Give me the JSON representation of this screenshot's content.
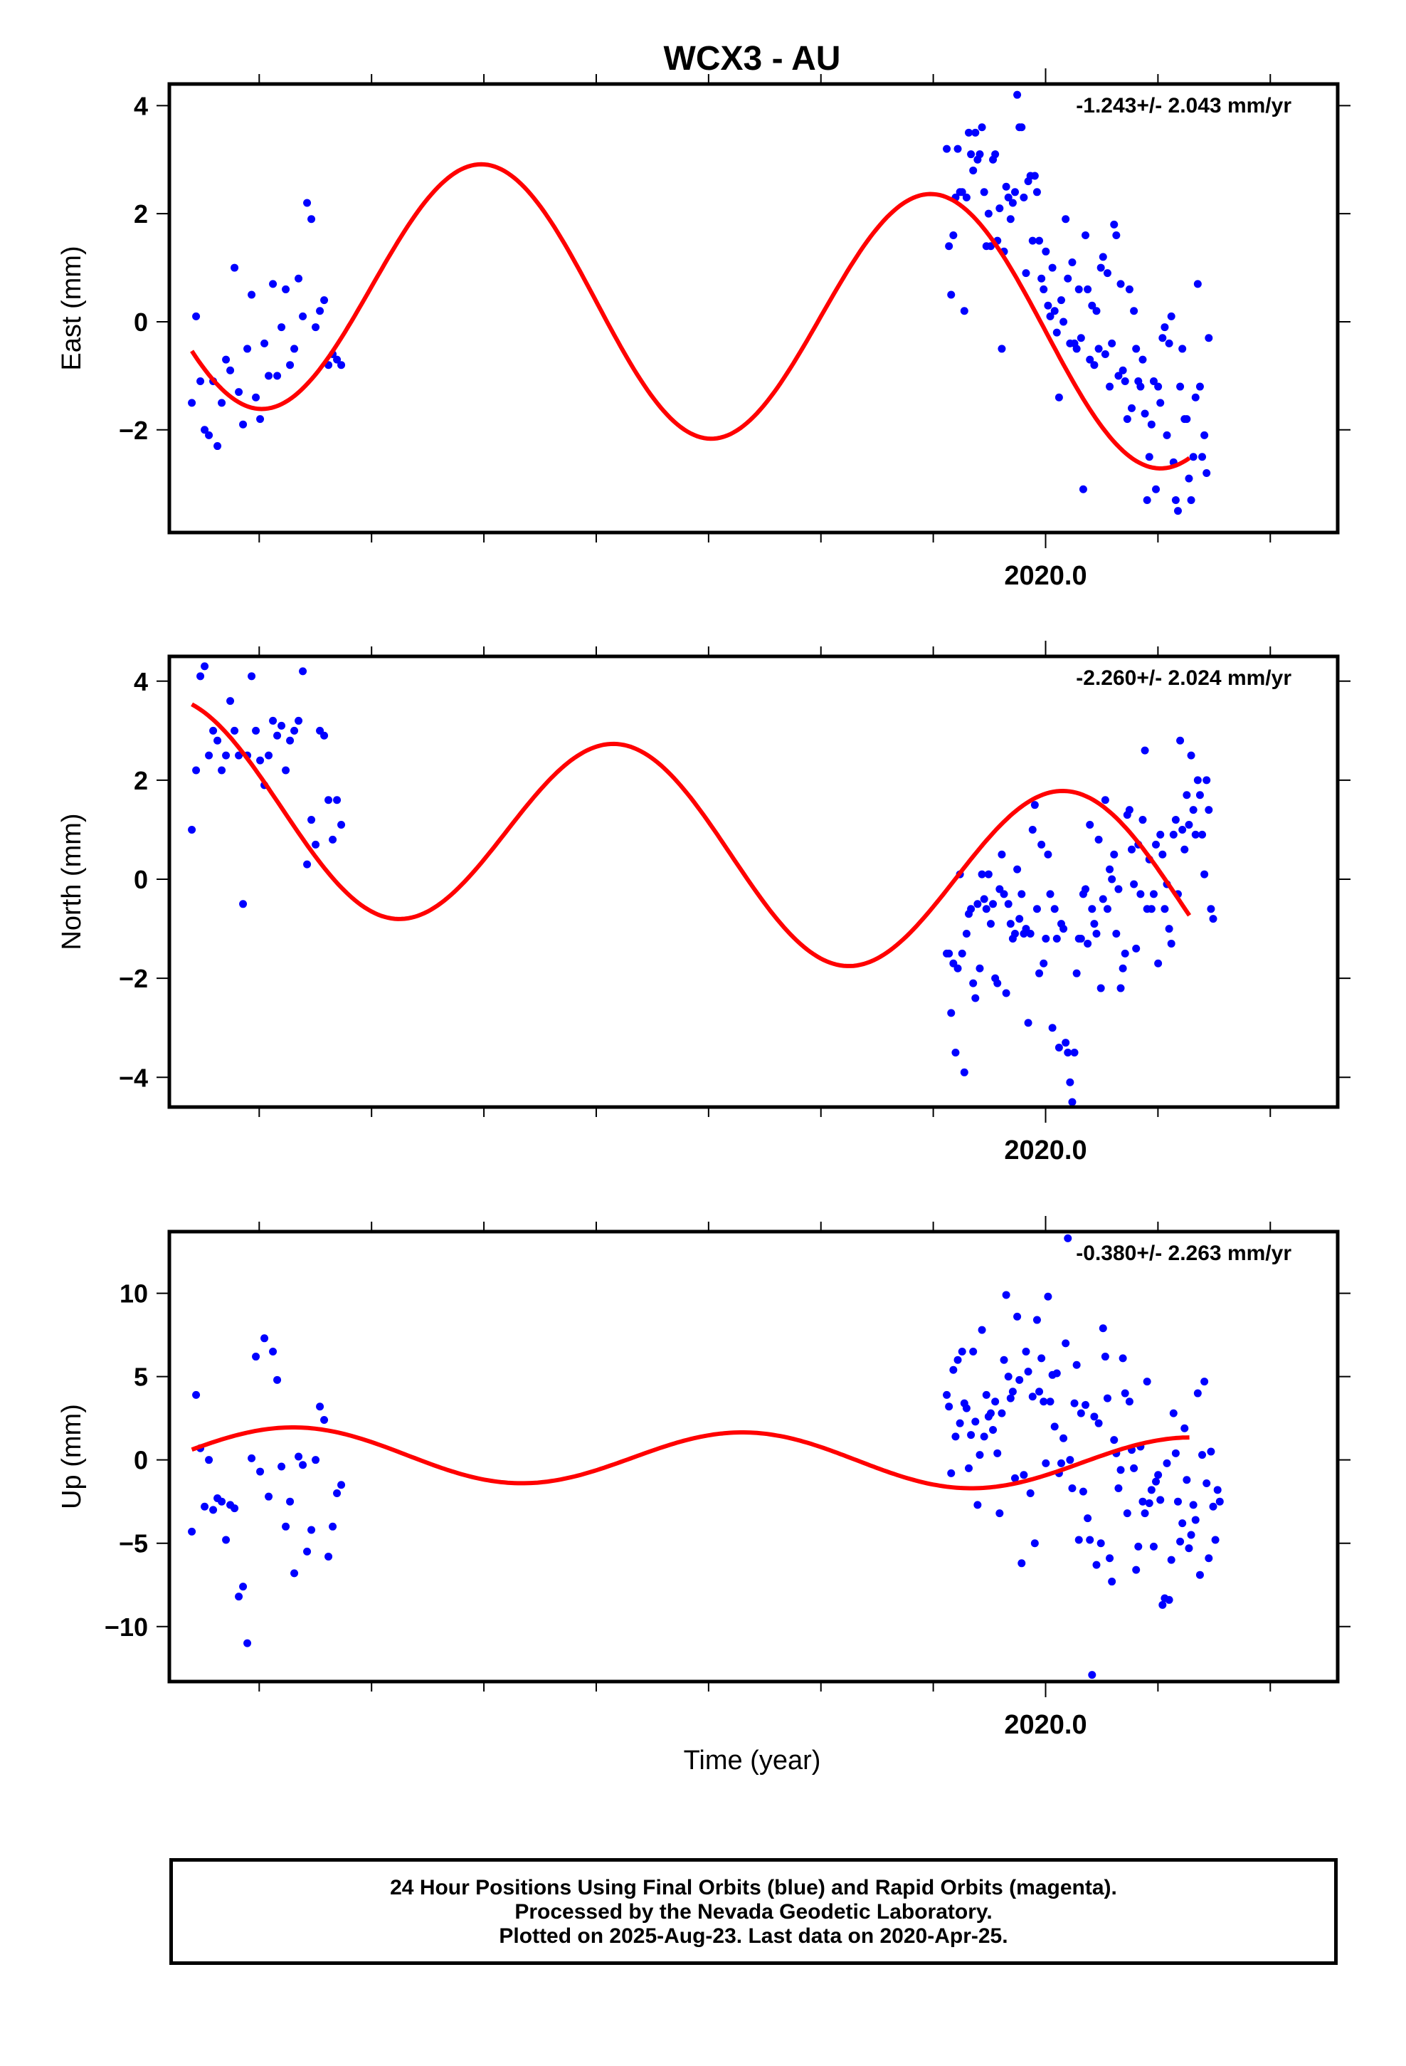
{
  "title": "WCX3 - AU",
  "x_axis_label": "Time (year)",
  "caption": [
    "24 Hour Positions Using Final Orbits (blue) and Rapid Orbits (magenta).",
    "Processed by the Nevada Geodetic Laboratory.",
    "Plotted on 2025-Aug-23. Last data on 2020-Apr-25."
  ],
  "colors": {
    "final_orbits": "#0000ff",
    "fit": "#ff0000"
  },
  "chart_data": [
    {
      "type": "scatter",
      "ylabel": "East (mm)",
      "rate_text": "-1.243+/- 2.043 mm/yr",
      "xlim": [
        2018.05,
        2020.65
      ],
      "ylim": [
        -3.9,
        4.4
      ],
      "x_tick_label": "2020.0",
      "yticks": [
        -2,
        0,
        2,
        4
      ],
      "grid": false,
      "fit": {
        "phase": 2019.75,
        "amp": 2.4,
        "offset": 0.1,
        "trend": -0.55
      },
      "points": {
        "segment1": {
          "start": 2018.1,
          "step": 0.0095,
          "y": [
            -1.5,
            0.1,
            -1.1,
            -2.0,
            -2.1,
            -1.1,
            -2.3,
            -1.5,
            -0.7,
            -0.9,
            1.0,
            -1.3,
            -1.9,
            -0.5,
            0.5,
            -1.4,
            -1.8,
            -0.4,
            -1.0,
            0.7,
            -1.0,
            -0.1,
            0.6,
            -0.8,
            -0.5,
            0.8,
            0.1,
            2.2,
            1.9,
            -0.1,
            0.2,
            0.4,
            -0.8,
            -0.6,
            -0.7,
            -0.8
          ]
        },
        "segment2": {
          "start": 2019.78,
          "step": 0.0049,
          "y": [
            3.2,
            1.4,
            0.5,
            1.6,
            2.3,
            3.2,
            2.4,
            2.4,
            0.2,
            2.3,
            3.5,
            3.1,
            2.8,
            3.5,
            3.0,
            3.1,
            3.6,
            2.4,
            1.4,
            2.0,
            1.4,
            3.0,
            3.1,
            1.5,
            2.1,
            -0.5,
            1.3,
            2.5,
            2.3,
            1.9,
            2.2,
            2.4,
            4.2,
            3.6,
            3.6,
            2.3,
            0.9,
            2.6,
            2.7,
            1.5,
            2.7,
            2.4,
            1.5,
            0.8,
            0.6,
            1.3,
            0.3,
            0.1,
            1.0,
            0.2,
            -0.2,
            -1.4,
            0.4,
            0.0,
            1.9,
            0.8,
            -0.4,
            1.1,
            -0.4,
            -0.5,
            0.6,
            -0.3,
            -3.1,
            1.6,
            0.6,
            -0.7,
            0.3,
            -0.8,
            0.2,
            -0.5,
            1.0,
            1.2,
            -0.6,
            0.9,
            -1.2,
            -0.4,
            1.8,
            1.6,
            -1.0,
            0.7,
            -0.9,
            -1.1,
            -1.8,
            0.6,
            -1.6,
            0.2,
            -0.5,
            -1.1,
            -1.2,
            -0.7,
            -1.7,
            -3.3,
            -2.5,
            -1.9,
            -1.1,
            -3.1,
            -1.2,
            -1.5,
            -0.3,
            -0.1,
            -2.1,
            -0.4,
            0.1,
            -2.6,
            -3.3,
            -3.5,
            -1.2,
            -0.5,
            -1.8,
            -1.8,
            -2.9,
            -3.3,
            -2.5,
            -1.4,
            0.7,
            -1.2,
            -2.5,
            -2.1,
            -2.8,
            -0.3
          ]
        }
      }
    },
    {
      "type": "scatter",
      "ylabel": "North (mm)",
      "rate_text": "-2.260+/- 2.024 mm/yr",
      "xlim": [
        2018.05,
        2020.65
      ],
      "ylim": [
        -4.6,
        4.5
      ],
      "x_tick_label": "2020.0",
      "yticks": [
        -4,
        -2,
        0,
        2,
        4
      ],
      "grid": false,
      "fit": {
        "phase": 2018.05,
        "amp": 2.0,
        "offset": 0.3,
        "trend": -0.95
      },
      "points": {
        "segment1": {
          "start": 2018.1,
          "step": 0.0095,
          "y": [
            1.0,
            2.2,
            4.1,
            4.3,
            2.5,
            3.0,
            2.8,
            2.2,
            2.5,
            3.6,
            3.0,
            2.5,
            -0.5,
            2.5,
            4.1,
            3.0,
            2.4,
            1.9,
            2.5,
            3.2,
            2.9,
            3.1,
            2.2,
            2.8,
            3.0,
            3.2,
            4.2,
            0.3,
            1.2,
            0.7,
            3.0,
            2.9,
            1.6,
            0.8,
            1.6,
            1.1
          ]
        },
        "segment2": {
          "start": 2019.78,
          "step": 0.0049,
          "y": [
            -1.5,
            -1.5,
            -2.7,
            -1.7,
            -3.5,
            -1.8,
            0.1,
            -1.5,
            -3.9,
            -1.1,
            -0.7,
            -0.6,
            -2.1,
            -2.4,
            -0.5,
            -1.8,
            0.1,
            -0.4,
            -0.6,
            0.1,
            -0.9,
            -0.5,
            -2.0,
            -2.1,
            -0.2,
            0.5,
            -0.3,
            -2.3,
            -0.5,
            -0.9,
            -1.2,
            -1.1,
            0.2,
            -0.8,
            -0.3,
            -1.1,
            -1.0,
            -2.9,
            -1.1,
            1.0,
            1.5,
            -0.6,
            -1.9,
            0.7,
            -1.7,
            -1.2,
            0.5,
            -0.3,
            -3.0,
            -0.6,
            -1.2,
            -3.4,
            -0.9,
            -1.0,
            -3.3,
            -3.5,
            -4.1,
            -4.5,
            -3.5,
            -1.9,
            -1.2,
            -1.2,
            -0.3,
            -0.2,
            -1.3,
            1.1,
            -0.6,
            -0.9,
            -1.1,
            0.8,
            -2.2,
            -0.4,
            1.6,
            -0.6,
            0.2,
            0.0,
            0.5,
            -1.1,
            -0.2,
            -2.2,
            -1.8,
            -1.5,
            1.3,
            1.4,
            0.6,
            -0.1,
            -1.4,
            0.7,
            -0.3,
            1.2,
            2.6,
            -0.6,
            0.4,
            -0.6,
            -0.3,
            0.7,
            -1.7,
            0.9,
            0.5,
            -0.6,
            -0.1,
            -1.0,
            -1.3,
            0.9,
            1.2,
            -0.3,
            2.8,
            1.0,
            0.6,
            1.7,
            1.1,
            2.5,
            1.4,
            0.9,
            2.0,
            1.7,
            0.9,
            0.1,
            2.0,
            1.4,
            -0.6,
            -0.8
          ]
        }
      }
    },
    {
      "type": "scatter",
      "ylabel": "Up (mm)",
      "rate_text": "-0.380+/- 2.263 mm/yr",
      "xlim": [
        2018.05,
        2020.65
      ],
      "ylim": [
        -13.3,
        13.7
      ],
      "x_tick_label": "2020.0",
      "yticks": [
        -10,
        -5,
        0,
        5,
        10
      ],
      "grid": false,
      "fit": {
        "phase": 2019.33,
        "amp": 1.6,
        "offset": 0.0,
        "trend": -0.3
      },
      "points": {
        "segment1": {
          "start": 2018.1,
          "step": 0.0095,
          "y": [
            -4.3,
            3.9,
            0.7,
            -2.8,
            0.0,
            -3.0,
            -2.3,
            -2.5,
            -4.8,
            -2.7,
            -2.9,
            -8.2,
            -7.6,
            -11.0,
            0.1,
            6.2,
            -0.7,
            7.3,
            -2.2,
            6.5,
            4.8,
            -0.4,
            -4.0,
            -2.5,
            -6.8,
            0.2,
            -0.3,
            -5.5,
            -4.2,
            0.0,
            3.2,
            2.4,
            -5.8,
            -4.0,
            -2.0,
            -1.5
          ]
        },
        "segment2": {
          "start": 2019.78,
          "step": 0.0049,
          "y": [
            3.9,
            3.2,
            -0.8,
            5.4,
            1.4,
            6.0,
            2.2,
            6.5,
            3.4,
            3.1,
            -0.5,
            1.5,
            6.5,
            2.3,
            -2.7,
            0.3,
            7.8,
            1.4,
            3.9,
            2.6,
            2.8,
            1.8,
            3.5,
            0.4,
            -3.2,
            2.8,
            6.0,
            9.9,
            5.0,
            3.7,
            4.1,
            -1.1,
            8.6,
            4.8,
            -6.2,
            -0.9,
            6.5,
            5.3,
            -2.0,
            3.8,
            -5.0,
            8.4,
            4.1,
            6.1,
            3.5,
            -0.2,
            9.8,
            3.5,
            5.1,
            2.0,
            5.2,
            -0.8,
            -0.2,
            1.3,
            7.0,
            13.3,
            0.0,
            -1.7,
            3.4,
            5.7,
            -4.8,
            2.8,
            -1.9,
            3.3,
            -3.5,
            -4.8,
            -12.9,
            2.6,
            -6.3,
            2.2,
            -5.0,
            7.9,
            6.2,
            3.7,
            -5.9,
            -7.3,
            1.2,
            0.4,
            -1.7,
            -0.6,
            6.1,
            4.0,
            -3.2,
            3.5,
            0.6,
            -0.5,
            -6.6,
            -5.2,
            0.8,
            -2.5,
            -3.2,
            4.7,
            -2.6,
            -1.8,
            -5.2,
            -1.3,
            -0.9,
            -2.4,
            -8.7,
            -8.3,
            -0.2,
            -8.4,
            -6.0,
            2.8,
            0.4,
            -2.5,
            -4.9,
            -3.8,
            1.9,
            -1.2,
            -5.3,
            -4.5,
            -2.7,
            -3.6,
            4.0,
            -6.9,
            0.3,
            4.7,
            -1.4,
            -5.9,
            0.5,
            -2.8,
            -4.8,
            -1.8,
            -2.5
          ]
        }
      }
    }
  ]
}
